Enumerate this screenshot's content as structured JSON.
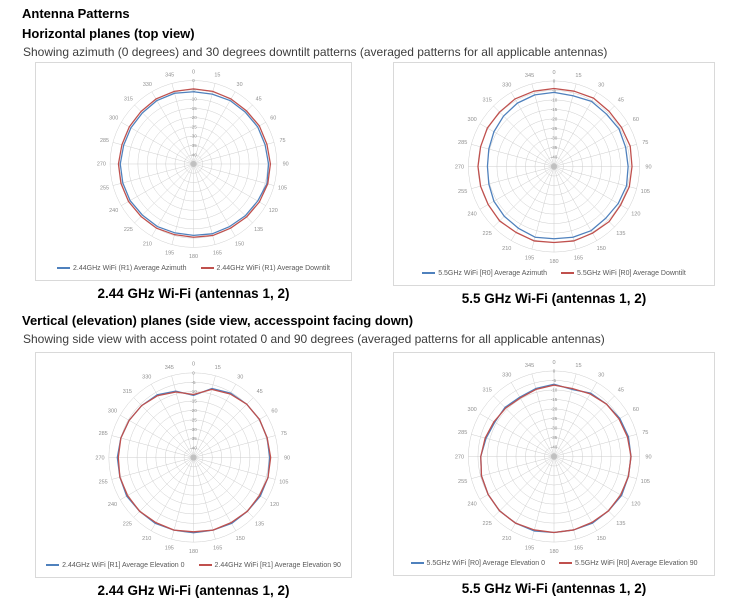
{
  "page": {
    "title": "Antenna Patterns"
  },
  "sections": [
    {
      "heading": "Horizontal planes (top view)",
      "subtitle": "Showing azimuth (0 degrees) and 30 degrees downtilt patterns (averaged patterns for all applicable antennas)",
      "figures": [
        {
          "caption": "2.44 GHz Wi-Fi (antennas 1, 2)"
        },
        {
          "caption": "5.5 GHz Wi-Fi (antennas 1, 2)"
        }
      ]
    },
    {
      "heading": "Vertical (elevation) planes (side view, accesspoint facing down)",
      "subtitle": "Showing side view with access point rotated 0 and 90 degrees (averaged patterns for all applicable antennas)",
      "figures": [
        {
          "caption": "2.44 GHz Wi-Fi (antennas 1, 2)"
        },
        {
          "caption": "5.5 GHz Wi-Fi (antennas 1, 2)"
        }
      ]
    }
  ],
  "colors": {
    "accent_blue": "#4F81BD",
    "accent_red": "#C0504D",
    "grid_line": "#cdcdcd",
    "chart_border": "#d9d9d9",
    "axis_label": "#8f8f8f",
    "legend_text": "#595959"
  },
  "chart_data": [
    {
      "id": "horizontal-2.44ghz",
      "type": "radar",
      "angle_unit": "degrees",
      "angles": [
        0,
        15,
        30,
        45,
        60,
        75,
        90,
        105,
        120,
        135,
        150,
        165,
        180,
        195,
        210,
        225,
        240,
        255,
        270,
        285,
        300,
        315,
        330,
        345
      ],
      "radial_axis": {
        "unit": "dB",
        "ticks": [
          0,
          -5,
          -10,
          -15,
          -20,
          -25,
          -30,
          -35,
          -40
        ],
        "range": [
          -45,
          0
        ]
      },
      "series": [
        {
          "name": "2.44GHz WiFi (R1) Average Azimuth",
          "color": "#4F81BD",
          "values": [
            -6,
            -6,
            -5.5,
            -5.5,
            -5,
            -5,
            -4.5,
            -4,
            -5,
            -5.5,
            -6,
            -6,
            -6.5,
            -6.5,
            -6,
            -6,
            -5.5,
            -5.5,
            -5.5,
            -6,
            -6,
            -6,
            -5.5,
            -5.5
          ]
        },
        {
          "name": "2.44GHz WiFi (R1) Average Downtilt",
          "color": "#C0504D",
          "values": [
            -4.5,
            -4.5,
            -4.5,
            -4.5,
            -4,
            -4,
            -3.5,
            -3.5,
            -4,
            -4.5,
            -5,
            -5,
            -5.5,
            -5.5,
            -5,
            -5,
            -4.5,
            -4.5,
            -4.5,
            -5,
            -5,
            -5,
            -4.5,
            -4.5
          ]
        }
      ]
    },
    {
      "id": "horizontal-5.5ghz",
      "type": "radar",
      "angle_unit": "degrees",
      "angles": [
        0,
        15,
        30,
        45,
        60,
        75,
        90,
        105,
        120,
        135,
        150,
        165,
        180,
        195,
        210,
        225,
        240,
        255,
        270,
        285,
        300,
        315,
        330,
        345
      ],
      "radial_axis": {
        "unit": "dB",
        "ticks": [
          0,
          -5,
          -10,
          -15,
          -20,
          -25,
          -30,
          -35,
          -40
        ],
        "range": [
          -45,
          0
        ]
      },
      "series": [
        {
          "name": "5.5GHz WiFi [R0] Average Azimuth",
          "color": "#4F81BD",
          "values": [
            -6,
            -6.5,
            -5.5,
            -6,
            -5.5,
            -6,
            -6,
            -5.5,
            -6,
            -6.5,
            -6,
            -6.5,
            -7,
            -6.5,
            -7.5,
            -8,
            -8.5,
            -9.5,
            -10,
            -9.5,
            -8.5,
            -7.5,
            -6.5,
            -6
          ]
        },
        {
          "name": "5.5GHz WiFi [R0] Average Downtilt",
          "color": "#C0504D",
          "values": [
            -4,
            -4,
            -3.5,
            -4,
            -4,
            -3.5,
            -4,
            -4,
            -4.5,
            -4,
            -4.5,
            -4.5,
            -5,
            -4.5,
            -5,
            -4.5,
            -5,
            -5,
            -5,
            -5,
            -4.5,
            -4.5,
            -4,
            -4
          ]
        }
      ]
    },
    {
      "id": "vertical-2.44ghz",
      "type": "radar",
      "angle_unit": "degrees",
      "angles": [
        0,
        15,
        30,
        45,
        60,
        75,
        90,
        105,
        120,
        135,
        150,
        165,
        180,
        195,
        210,
        225,
        240,
        255,
        270,
        285,
        300,
        315,
        330,
        345
      ],
      "radial_axis": {
        "unit": "dB",
        "ticks": [
          0,
          -5,
          -10,
          -15,
          -20,
          -25,
          -30,
          -35,
          -40
        ],
        "range": [
          -45,
          0
        ]
      },
      "series": [
        {
          "name": "2.44GHz WiFi [R1] Average Elevation 0",
          "color": "#4F81BD",
          "values": [
            -12,
            -7,
            -5.5,
            -5,
            -4.5,
            -4.5,
            -4.5,
            -4,
            -4,
            -4.5,
            -4.5,
            -5,
            -5,
            -5,
            -4.5,
            -4.5,
            -4,
            -4.5,
            -4.5,
            -5,
            -5.5,
            -6,
            -6.5,
            -8.5
          ]
        },
        {
          "name": "2.44GHz WiFi [R1] Average Elevation 90",
          "color": "#C0504D",
          "values": [
            -11.5,
            -7.5,
            -6,
            -5,
            -4.5,
            -4.5,
            -4,
            -4,
            -4.5,
            -4.5,
            -5,
            -5,
            -5.5,
            -5,
            -5,
            -4.5,
            -4.5,
            -4.5,
            -5,
            -5,
            -5.5,
            -6,
            -7,
            -9
          ]
        }
      ]
    },
    {
      "id": "vertical-5.5ghz",
      "type": "radar",
      "angle_unit": "degrees",
      "angles": [
        0,
        15,
        30,
        45,
        60,
        75,
        90,
        105,
        120,
        135,
        150,
        165,
        180,
        195,
        210,
        225,
        240,
        255,
        270,
        285,
        300,
        315,
        330,
        345
      ],
      "radial_axis": {
        "unit": "dB",
        "ticks": [
          0,
          -5,
          -10,
          -15,
          -20,
          -25,
          -30,
          -35,
          -40
        ],
        "range": [
          -45,
          0
        ]
      },
      "series": [
        {
          "name": "5.5GHz WiFi [R0] Average Elevation 0",
          "color": "#4F81BD",
          "values": [
            -7,
            -8.5,
            -6.5,
            -6,
            -5,
            -4.5,
            -4.5,
            -4.5,
            -4,
            -4.5,
            -4.5,
            -5,
            -5,
            -4.5,
            -4.5,
            -4.5,
            -5,
            -5.5,
            -6.5,
            -8,
            -9,
            -8.5,
            -9,
            -8
          ]
        },
        {
          "name": "5.5GHz WiFi [R0] Average Elevation 90",
          "color": "#C0504D",
          "values": [
            -7.5,
            -8,
            -7,
            -6,
            -5.5,
            -5,
            -4.5,
            -4.5,
            -4.5,
            -4.5,
            -5,
            -5,
            -5,
            -5,
            -4.5,
            -4.5,
            -5,
            -5.5,
            -6.5,
            -7.5,
            -8.5,
            -9,
            -9.5,
            -8.5
          ]
        }
      ]
    }
  ]
}
